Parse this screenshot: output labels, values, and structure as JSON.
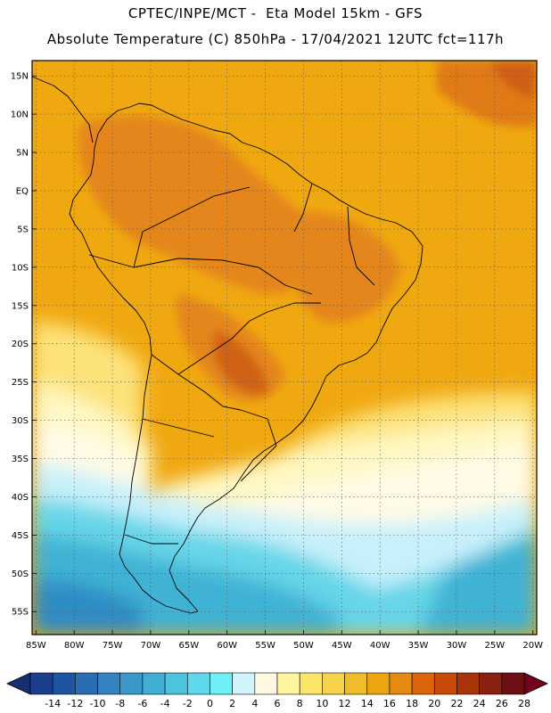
{
  "header": {
    "line1": "CPTEC/INPE/MCT -  Eta Model 15km - GFS",
    "line2": "Absolute Temperature (C) 850hPa - 17/04/2021 12UTC fct=117h"
  },
  "map": {
    "lat_labels": [
      "15N",
      "10N",
      "5N",
      "EQ",
      "5S",
      "10S",
      "15S",
      "20S",
      "25S",
      "30S",
      "35S",
      "40S",
      "45S",
      "50S",
      "55S"
    ],
    "lon_labels": [
      "85W",
      "80W",
      "75W",
      "70W",
      "65W",
      "60W",
      "55W",
      "50W",
      "45W",
      "40W",
      "35W",
      "30W",
      "25W",
      "20W"
    ],
    "lat_range": [
      17,
      -58
    ],
    "lon_range": [
      -85.5,
      -19.5
    ]
  },
  "colorbar": {
    "labels": [
      "-14",
      "-12",
      "-10",
      "-8",
      "-6",
      "-4",
      "-2",
      "0",
      "2",
      "4",
      "6",
      "8",
      "10",
      "12",
      "14",
      "16",
      "18",
      "20",
      "22",
      "24",
      "26",
      "28"
    ],
    "colors": [
      "#1b3f8c",
      "#1f55a0",
      "#2a6db4",
      "#3383c0",
      "#3a99c9",
      "#41acd4",
      "#4cc4df",
      "#5ed8ea",
      "#6ff0f6",
      "#cff4fc",
      "#fff8e1",
      "#fff5a0",
      "#fce66a",
      "#f6d348",
      "#f0bd2a",
      "#eba60f",
      "#e48a10",
      "#dc640b",
      "#c84b0a",
      "#a8350a",
      "#8a2010",
      "#6e0f14"
    ]
  }
}
